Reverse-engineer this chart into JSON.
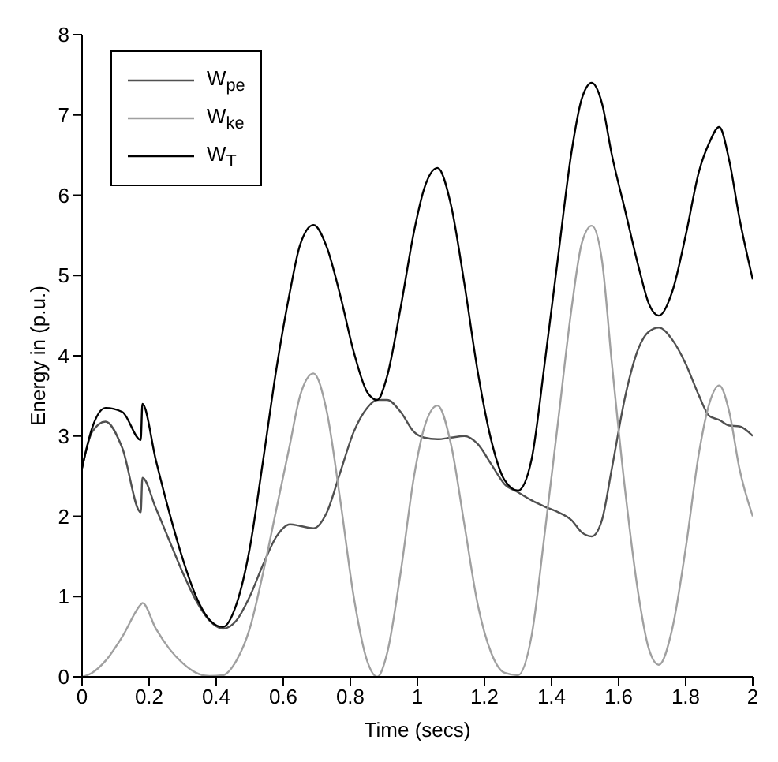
{
  "chart_data": {
    "type": "line",
    "xlabel": "Time (secs)",
    "ylabel": "Energy in (p.u.)",
    "x": [
      0,
      0.03,
      0.07,
      0.12,
      0.175,
      0.18,
      0.22,
      0.26,
      0.3,
      0.34,
      0.38,
      0.42,
      0.46,
      0.5,
      0.54,
      0.58,
      0.62,
      0.65,
      0.69,
      0.73,
      0.77,
      0.81,
      0.85,
      0.88,
      0.91,
      0.95,
      0.99,
      1.02,
      1.06,
      1.1,
      1.14,
      1.18,
      1.22,
      1.26,
      1.3,
      1.34,
      1.38,
      1.42,
      1.46,
      1.49,
      1.52,
      1.55,
      1.58,
      1.62,
      1.66,
      1.69,
      1.72,
      1.76,
      1.8,
      1.84,
      1.87,
      1.9,
      1.93,
      1.96,
      2.0
    ],
    "series": [
      {
        "name": "W$_{pe}$",
        "color": "#505050",
        "values": [
          2.6,
          3.05,
          3.18,
          2.85,
          2.05,
          2.48,
          2.1,
          1.7,
          1.3,
          0.95,
          0.7,
          0.6,
          0.7,
          1.0,
          1.4,
          1.75,
          1.9,
          1.88,
          1.85,
          2.05,
          2.55,
          3.05,
          3.35,
          3.45,
          3.45,
          3.3,
          3.05,
          2.98,
          2.96,
          2.98,
          3.0,
          2.9,
          2.65,
          2.4,
          2.3,
          2.2,
          2.12,
          2.05,
          1.95,
          1.8,
          1.75,
          1.95,
          2.6,
          3.5,
          4.1,
          4.3,
          4.35,
          4.2,
          3.9,
          3.5,
          3.25,
          3.2,
          3.13,
          3.12,
          3.0
        ]
      },
      {
        "name": "W$_{ke}$",
        "color": "#a0a0a0",
        "values": [
          0,
          0.05,
          0.2,
          0.5,
          0.9,
          0.92,
          0.6,
          0.35,
          0.17,
          0.05,
          0.01,
          0.02,
          0.2,
          0.6,
          1.3,
          2.1,
          2.9,
          3.5,
          3.78,
          3.3,
          2.2,
          1.0,
          0.2,
          0.0,
          0.3,
          1.3,
          2.5,
          3.1,
          3.38,
          2.9,
          1.9,
          0.9,
          0.3,
          0.05,
          0.02,
          0.5,
          1.8,
          3.2,
          4.6,
          5.4,
          5.62,
          5.2,
          3.9,
          2.3,
          1.0,
          0.35,
          0.15,
          0.6,
          1.6,
          2.8,
          3.4,
          3.63,
          3.3,
          2.6,
          2.0
        ]
      },
      {
        "name": "W$_{T}$",
        "color": "#000000",
        "values": [
          2.6,
          3.1,
          3.35,
          3.3,
          2.95,
          3.4,
          2.7,
          2.05,
          1.47,
          1.0,
          0.71,
          0.62,
          0.9,
          1.6,
          2.7,
          3.85,
          4.8,
          5.38,
          5.63,
          5.35,
          4.75,
          4.05,
          3.55,
          3.45,
          3.75,
          4.6,
          5.55,
          6.08,
          6.34,
          5.88,
          4.9,
          3.8,
          2.95,
          2.45,
          2.32,
          2.7,
          3.92,
          5.25,
          6.55,
          7.2,
          7.4,
          7.15,
          6.5,
          5.8,
          5.1,
          4.65,
          4.5,
          4.8,
          5.5,
          6.3,
          6.65,
          6.85,
          6.43,
          5.72,
          4.95
        ]
      }
    ],
    "xlim": [
      0,
      2
    ],
    "xticks": [
      0,
      0.2,
      0.4,
      0.6,
      0.8,
      1,
      1.2,
      1.4,
      1.6,
      1.8,
      2
    ],
    "ylim": [
      0,
      8
    ],
    "yticks": [
      0,
      1,
      2,
      3,
      4,
      5,
      6,
      7,
      8
    ],
    "legend": "top left",
    "marker": "none",
    "line_style": "solid"
  }
}
